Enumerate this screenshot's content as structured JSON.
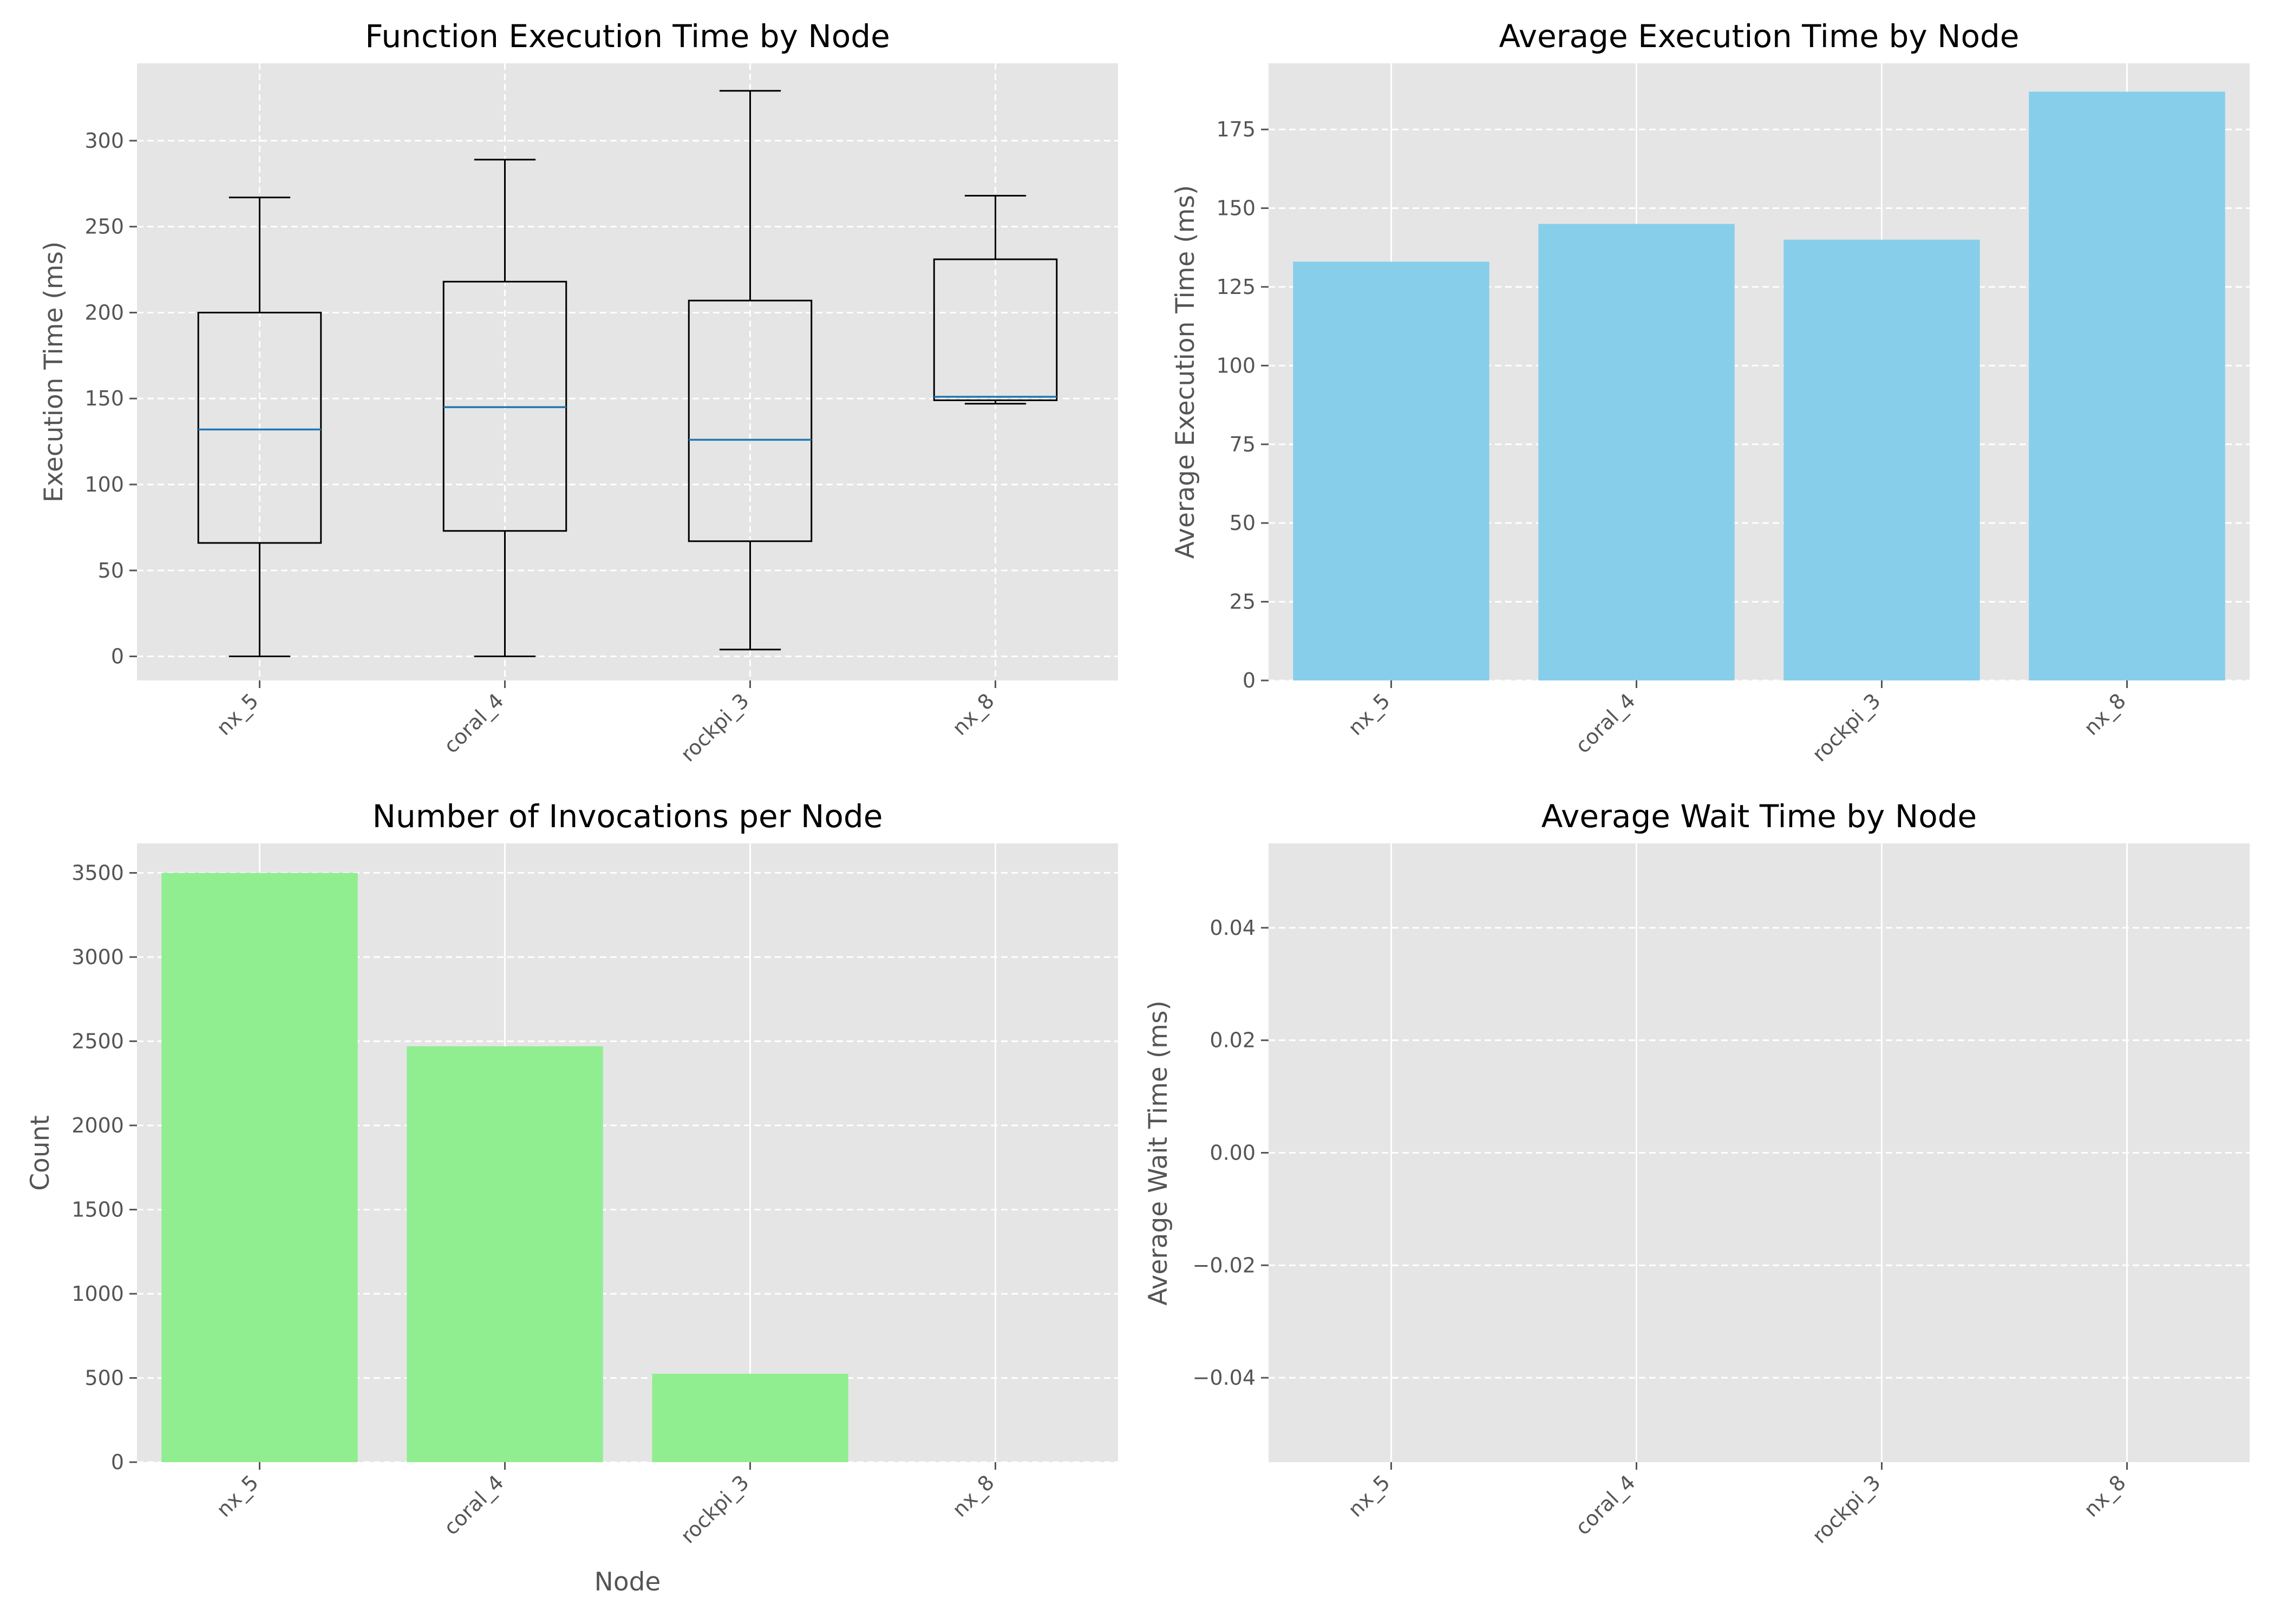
{
  "chart_data": [
    {
      "type": "box",
      "title": "Function Execution Time by Node",
      "xlabel": "",
      "ylabel": "Execution Time (ms)",
      "categories": [
        "nx_5",
        "coral_4",
        "rockpi_3",
        "nx_8"
      ],
      "yticks": [
        "0",
        "50",
        "100",
        "150",
        "200",
        "250",
        "300"
      ],
      "ylim": [
        -14,
        345
      ],
      "boxes": [
        {
          "min": 0,
          "q1": 66,
          "median": 132,
          "q3": 200,
          "max": 267
        },
        {
          "min": 0,
          "q1": 73,
          "median": 145,
          "q3": 218,
          "max": 289
        },
        {
          "min": 4,
          "q1": 67,
          "median": 126,
          "q3": 207,
          "max": 329
        },
        {
          "min": 147,
          "q1": 149,
          "median": 151,
          "q3": 231,
          "max": 268
        }
      ],
      "grid": true,
      "colors": {
        "box": "#000000",
        "median": "#1f77b4",
        "background": "#e5e5e5"
      }
    },
    {
      "type": "bar",
      "title": "Average Execution Time by Node",
      "xlabel": "",
      "ylabel": "Average Execution Time (ms)",
      "categories": [
        "nx_5",
        "coral_4",
        "rockpi_3",
        "nx_8"
      ],
      "values": [
        133,
        145,
        140,
        187
      ],
      "yticks": [
        "0",
        "25",
        "50",
        "75",
        "100",
        "125",
        "150",
        "175"
      ],
      "ylim": [
        0,
        196
      ],
      "grid": true,
      "colors": {
        "bar": "#87ceeb",
        "background": "#e5e5e5"
      }
    },
    {
      "type": "bar",
      "title": "Number of Invocations per Node",
      "xlabel": "Node",
      "ylabel": "Count",
      "categories": [
        "nx_5",
        "coral_4",
        "rockpi_3",
        "nx_8"
      ],
      "values": [
        3500,
        2470,
        525,
        0
      ],
      "yticks": [
        "0",
        "500",
        "1000",
        "1500",
        "2000",
        "2500",
        "3000",
        "3500"
      ],
      "ylim": [
        0,
        3675
      ],
      "grid": true,
      "colors": {
        "bar": "#90ee90",
        "background": "#e5e5e5"
      }
    },
    {
      "type": "bar",
      "title": "Average Wait Time by Node",
      "xlabel": "",
      "ylabel": "Average Wait Time (ms)",
      "categories": [
        "nx_5",
        "coral_4",
        "rockpi_3",
        "nx_8"
      ],
      "values": [
        0,
        0,
        0,
        0
      ],
      "yticks": [
        "−0.04",
        "−0.02",
        "0.00",
        "0.02",
        "0.04"
      ],
      "ylim": [
        -0.055,
        0.055
      ],
      "grid": true,
      "colors": {
        "bar": "#87ceeb",
        "background": "#e5e5e5"
      }
    }
  ]
}
